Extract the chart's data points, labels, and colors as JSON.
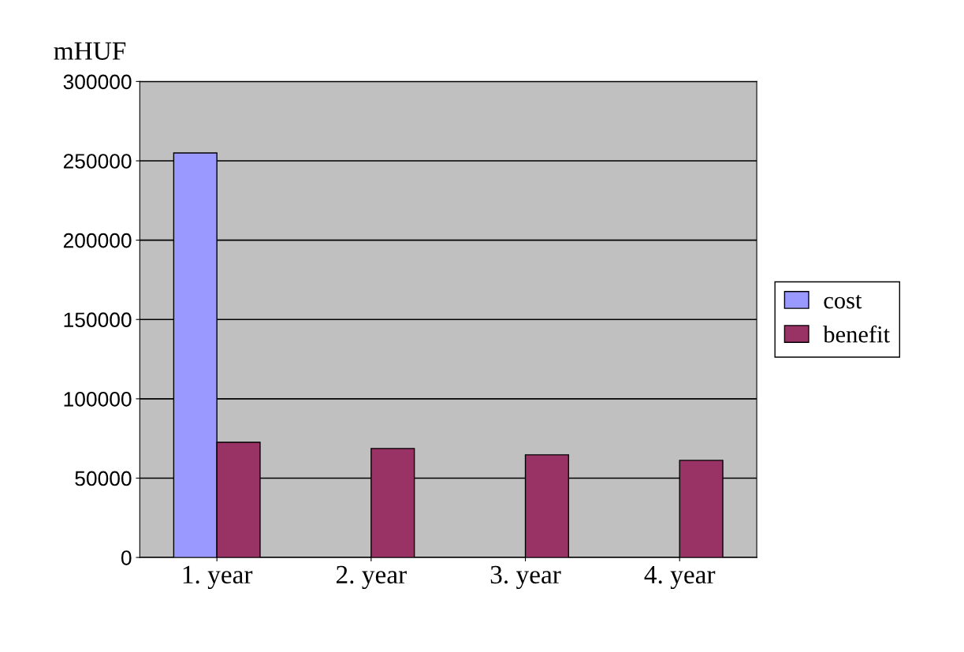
{
  "chart_data": {
    "type": "bar",
    "ylabel": "mHUF",
    "categories": [
      "1. year",
      "2. year",
      "3. year",
      "4. year"
    ],
    "series": [
      {
        "name": "cost",
        "color": "#9999ff",
        "values": [
          255000,
          null,
          null,
          null
        ]
      },
      {
        "name": "benefit",
        "color": "#993366",
        "values": [
          72600,
          68700,
          64700,
          61200
        ]
      }
    ],
    "ylim": [
      0,
      300000
    ],
    "yticks": [
      0,
      50000,
      100000,
      150000,
      200000,
      250000,
      300000
    ],
    "grid": "y",
    "legend": "right"
  }
}
